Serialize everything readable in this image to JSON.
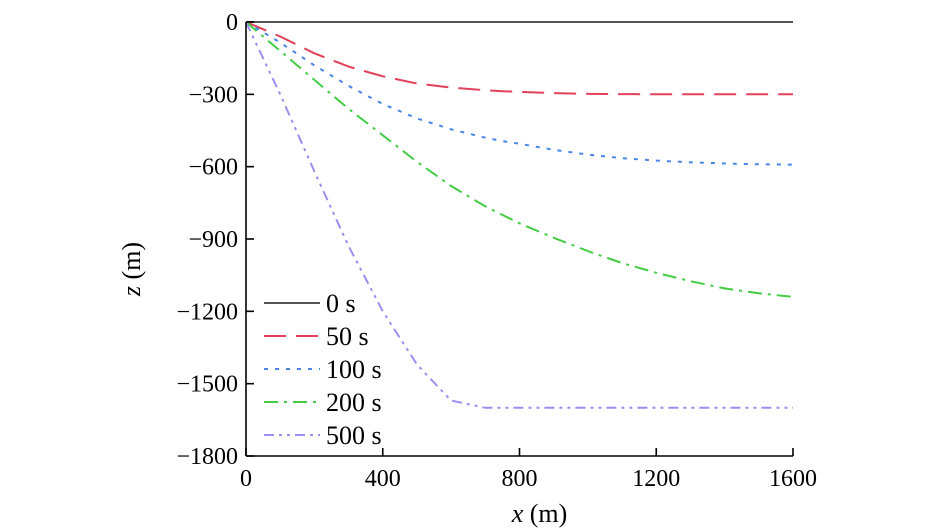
{
  "chart_data": {
    "type": "line",
    "xlabel_var": "x",
    "xlabel_unit": "(m)",
    "ylabel_var": "z",
    "ylabel_unit": "(m)",
    "xlim": [
      0,
      1600
    ],
    "ylim": [
      -1800,
      0
    ],
    "x_ticks": [
      0,
      400,
      800,
      1200,
      1600
    ],
    "y_ticks": [
      0,
      -300,
      -600,
      -900,
      -1200,
      -1500,
      -1800
    ],
    "x_tick_labels": [
      "0",
      "400",
      "800",
      "1200",
      "1600"
    ],
    "y_tick_labels": [
      "0",
      "−300",
      "−600",
      "−900",
      "−1200",
      "−1500",
      "−1800"
    ],
    "grid": false,
    "legend_position": "lower-left",
    "x": [
      0,
      100,
      200,
      300,
      400,
      500,
      600,
      700,
      750,
      800,
      900,
      1000,
      1100,
      1200,
      1300,
      1400,
      1500,
      1600
    ],
    "series": [
      {
        "name": "0 s",
        "color": "#555555",
        "dash": "solid",
        "values": [
          0,
          0,
          0,
          0,
          0,
          0,
          0,
          0,
          0,
          0,
          0,
          0,
          0,
          0,
          0,
          0,
          0,
          0
        ]
      },
      {
        "name": "50 s",
        "color": "#e0405a",
        "dash": "dashed",
        "values": [
          0,
          -60,
          -130,
          -185,
          -225,
          -255,
          -272,
          -283,
          -287,
          -290,
          -295,
          -298,
          -299,
          -300,
          -300,
          -300,
          -300,
          -300
        ]
      },
      {
        "name": "100 s",
        "color": "#4a86e8",
        "dash": "dotted",
        "values": [
          0,
          -85,
          -180,
          -265,
          -340,
          -400,
          -445,
          -480,
          -494,
          -505,
          -530,
          -550,
          -565,
          -575,
          -582,
          -587,
          -590,
          -592
        ]
      },
      {
        "name": "200 s",
        "color": "#44cc44",
        "dash": "dashdot",
        "values": [
          0,
          -120,
          -240,
          -360,
          -470,
          -580,
          -680,
          -765,
          -800,
          -835,
          -895,
          -950,
          -1000,
          -1040,
          -1075,
          -1105,
          -1125,
          -1140
        ]
      },
      {
        "name": "500 s",
        "color": "#9b8ef0",
        "dash": "dashdotdot",
        "values": [
          0,
          -300,
          -620,
          -930,
          -1200,
          -1420,
          -1570,
          -1600,
          -1600,
          -1600,
          -1600,
          -1600,
          -1600,
          -1600,
          -1600,
          -1600,
          -1600,
          -1600
        ]
      }
    ]
  }
}
